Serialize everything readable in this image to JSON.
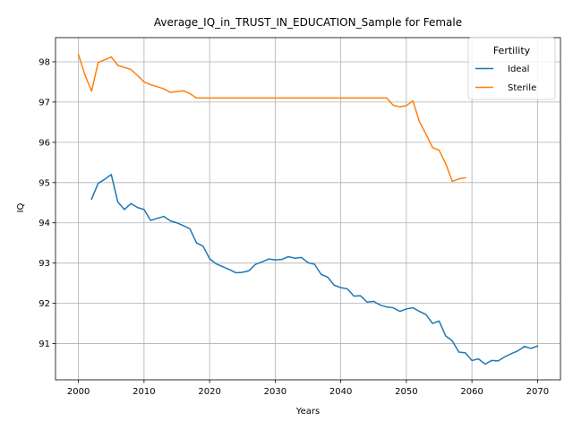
{
  "chart_data": {
    "type": "line",
    "title": "Average_IQ_in_TRUST_IN_EDUCATION_Sample for Female",
    "xlabel": "Years",
    "ylabel": "IQ",
    "xlim": [
      1996.5,
      2073.5
    ],
    "ylim": [
      90.1,
      98.6
    ],
    "xticks": [
      2000,
      2010,
      2020,
      2030,
      2040,
      2050,
      2060,
      2070
    ],
    "yticks": [
      91,
      92,
      93,
      94,
      95,
      96,
      97,
      98
    ],
    "grid": true,
    "legend": {
      "title": "Fertility",
      "position": "top-right"
    },
    "series": [
      {
        "name": "Ideal",
        "color": "#1f77b4",
        "x": [
          2002,
          2003,
          2004,
          2005,
          2006,
          2007,
          2008,
          2009,
          2010,
          2011,
          2012,
          2013,
          2014,
          2015,
          2016,
          2017,
          2018,
          2019,
          2020,
          2021,
          2022,
          2023,
          2024,
          2025,
          2026,
          2027,
          2028,
          2029,
          2030,
          2031,
          2032,
          2033,
          2034,
          2035,
          2036,
          2037,
          2038,
          2039,
          2040,
          2041,
          2042,
          2043,
          2044,
          2045,
          2046,
          2047,
          2048,
          2049,
          2050,
          2051,
          2052,
          2053,
          2054,
          2055,
          2056,
          2057,
          2058,
          2059,
          2060,
          2061,
          2062,
          2063,
          2064,
          2065,
          2066,
          2067,
          2068,
          2069,
          2070
        ],
        "y": [
          94.59,
          94.98,
          95.08,
          95.2,
          94.52,
          94.33,
          94.48,
          94.38,
          94.33,
          94.06,
          94.11,
          94.16,
          94.05,
          94.0,
          93.93,
          93.85,
          93.5,
          93.42,
          93.11,
          92.98,
          92.91,
          92.84,
          92.76,
          92.77,
          92.81,
          92.97,
          93.03,
          93.1,
          93.08,
          93.09,
          93.16,
          93.12,
          93.14,
          93.01,
          92.97,
          92.72,
          92.65,
          92.45,
          92.39,
          92.36,
          92.18,
          92.19,
          92.03,
          92.05,
          91.96,
          91.91,
          91.89,
          91.8,
          91.86,
          91.89,
          91.8,
          91.72,
          91.5,
          91.56,
          91.19,
          91.07,
          90.79,
          90.77,
          90.58,
          90.62,
          90.49,
          90.58,
          90.57,
          90.67,
          90.75,
          90.82,
          90.93,
          90.88,
          90.94
        ]
      },
      {
        "name": "Sterile",
        "color": "#ff7f0e",
        "x": [
          2000,
          2001,
          2002,
          2003,
          2004,
          2005,
          2006,
          2007,
          2008,
          2009,
          2010,
          2011,
          2012,
          2013,
          2014,
          2015,
          2016,
          2017,
          2018,
          2019,
          2020,
          2021,
          2022,
          2023,
          2024,
          2025,
          2026,
          2027,
          2028,
          2029,
          2030,
          2031,
          2032,
          2033,
          2034,
          2035,
          2036,
          2037,
          2038,
          2039,
          2040,
          2041,
          2042,
          2043,
          2044,
          2045,
          2046,
          2047,
          2048,
          2049,
          2050,
          2051,
          2052,
          2053,
          2054,
          2055,
          2056,
          2057,
          2058,
          2059
        ],
        "y": [
          98.18,
          97.67,
          97.27,
          97.98,
          98.05,
          98.12,
          97.91,
          97.86,
          97.81,
          97.66,
          97.5,
          97.43,
          97.38,
          97.33,
          97.24,
          97.26,
          97.28,
          97.21,
          97.1,
          97.1,
          97.1,
          97.1,
          97.1,
          97.1,
          97.1,
          97.1,
          97.1,
          97.1,
          97.1,
          97.1,
          97.1,
          97.1,
          97.1,
          97.1,
          97.1,
          97.1,
          97.1,
          97.1,
          97.1,
          97.1,
          97.1,
          97.1,
          97.1,
          97.1,
          97.1,
          97.1,
          97.1,
          97.1,
          96.92,
          96.88,
          96.91,
          97.03,
          96.51,
          96.2,
          95.87,
          95.8,
          95.47,
          95.03,
          95.09,
          95.12
        ]
      }
    ]
  }
}
